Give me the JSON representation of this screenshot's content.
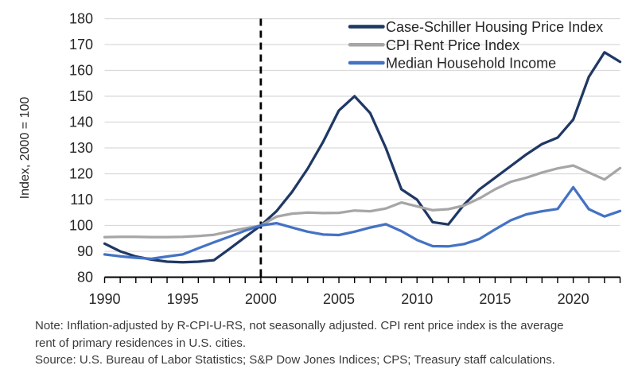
{
  "chart": {
    "y_axis_title": "Index, 2000 = 100",
    "y_tick_labels": [
      80,
      90,
      100,
      110,
      120,
      130,
      140,
      150,
      160,
      170,
      180
    ],
    "x_tick_labels": [
      1990,
      1995,
      2000,
      2005,
      2010,
      2015,
      2020
    ],
    "reference_line_year": 2000,
    "colors": {
      "case_shiller": "#1f3864",
      "cpi_rent": "#a6a6a6",
      "median_income": "#4472c4",
      "gridline": "#d9d9d9",
      "axis": "#000000",
      "tick_text": "#262626",
      "reference_line": "#000000"
    }
  },
  "chart_data": {
    "type": "line",
    "title": "",
    "xlabel": "",
    "ylabel": "Index, 2000 = 100",
    "xlim": [
      1990,
      2023
    ],
    "ylim": [
      80,
      180
    ],
    "grid": true,
    "legend_position": "top-right",
    "x": [
      1990,
      1991,
      1992,
      1993,
      1994,
      1995,
      1996,
      1997,
      1998,
      1999,
      2000,
      2001,
      2002,
      2003,
      2004,
      2005,
      2006,
      2007,
      2008,
      2009,
      2010,
      2011,
      2012,
      2013,
      2014,
      2015,
      2016,
      2017,
      2018,
      2019,
      2020,
      2021,
      2022,
      2023
    ],
    "series": [
      {
        "name": "Case-Schiller Housing Price Index",
        "color": "#1f3864",
        "values": [
          93,
          90,
          88,
          86.8,
          86,
          85.8,
          86,
          86.6,
          91,
          95.5,
          100,
          105.5,
          113,
          122,
          132.5,
          144.5,
          150,
          143.5,
          130,
          114,
          110,
          101.3,
          100.4,
          108,
          114,
          118.5,
          123,
          127.5,
          131.5,
          134,
          141,
          157.5,
          167,
          163.3
        ]
      },
      {
        "name": "CPI Rent Price Index",
        "color": "#a6a6a6",
        "values": [
          95.5,
          95.6,
          95.6,
          95.5,
          95.5,
          95.6,
          95.9,
          96.4,
          97.7,
          98.9,
          100,
          103.4,
          104.6,
          105,
          104.8,
          104.9,
          105.8,
          105.5,
          106.6,
          108.9,
          107.4,
          105.9,
          106.3,
          107.7,
          110.5,
          114,
          116.9,
          118.5,
          120.5,
          122.1,
          123.2,
          120.5,
          117.8,
          122.2
        ]
      },
      {
        "name": "Median Household Income",
        "color": "#4472c4",
        "values": [
          88.8,
          88.1,
          87.5,
          87.1,
          88,
          88.8,
          91.2,
          93.5,
          95.7,
          98,
          100,
          100.9,
          99.2,
          97.6,
          96.5,
          96.3,
          97.6,
          99.2,
          100.5,
          97.8,
          94.4,
          92,
          91.9,
          92.8,
          94.8,
          98.5,
          102,
          104.3,
          105.5,
          106.4,
          114.8,
          106.3,
          103.5,
          105.6
        ]
      }
    ]
  },
  "notes": {
    "note_line1": "Note: Inflation-adjusted by R-CPI-U-RS, not seasonally adjusted. CPI rent price index is the average",
    "note_line2": "rent of primary residences in U.S. cities.",
    "source": "Source: U.S. Bureau of Labor Statistics; S&P Dow Jones Indices; CPS; Treasury staff calculations."
  }
}
